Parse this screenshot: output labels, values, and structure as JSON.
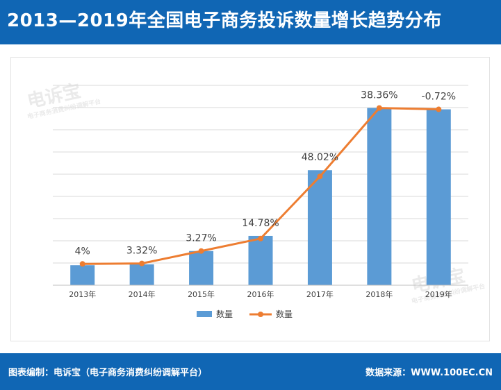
{
  "header": {
    "title": "2013—2019年全国电子商务投诉数量增长趋势分布"
  },
  "watermark": {
    "main": "电诉宝",
    "sub": "电子商务消费纠纷调解平台"
  },
  "chart_data": {
    "type": "bar",
    "categories": [
      "2013年",
      "2014年",
      "2015年",
      "2016年",
      "2017年",
      "2018年",
      "2019年"
    ],
    "series": [
      {
        "name": "数量",
        "kind": "bar",
        "color": "#5b9bd5",
        "values": [
          0.45,
          0.47,
          0.77,
          1.11,
          2.59,
          3.99,
          3.96
        ]
      },
      {
        "name": "数量",
        "kind": "line",
        "color": "#ed7d31",
        "values": [
          0.48,
          0.49,
          0.77,
          1.05,
          2.45,
          3.99,
          3.96
        ]
      }
    ],
    "data_labels": [
      "4%",
      "3.32%",
      "3.27%",
      "14.78%",
      "48.02%",
      "38.36%",
      "-0.72%"
    ],
    "ylim": [
      0,
      4.5
    ],
    "grid": true,
    "legend_position": "bottom",
    "xlabel": "",
    "ylabel": ""
  },
  "footer": {
    "left": "图表编制：电诉宝（电子商务消费纠纷调解平台）",
    "right": "数据来源：WWW.100EC.CN"
  }
}
